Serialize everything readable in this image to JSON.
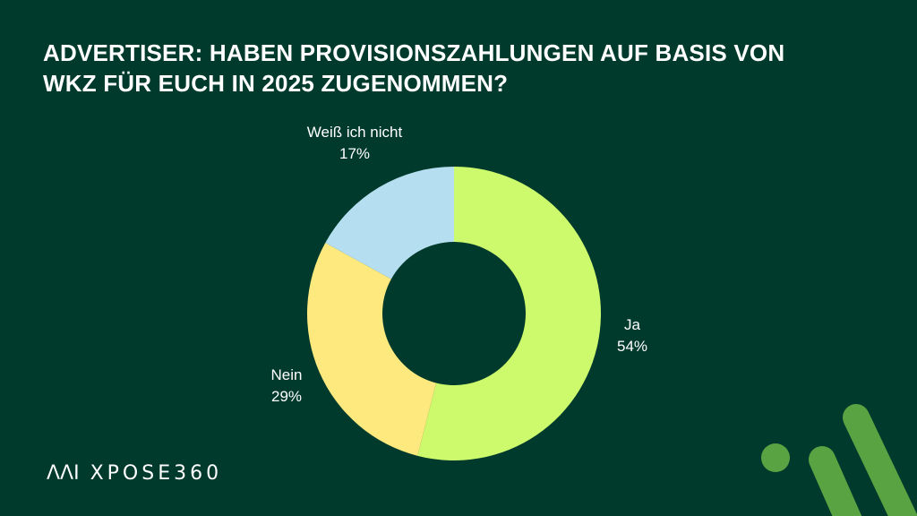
{
  "title": {
    "line1": "ADVERTISER: HABEN PROVISIONSZAHLUNGEN AUF BASIS VON",
    "line2": "WKZ FÜR EUCH IN 2025 ZUGENOMMEN?"
  },
  "chart_data": {
    "type": "pie",
    "variant": "donut",
    "title": "ADVERTISER: HABEN PROVISIONSZAHLUNGEN AUF BASIS VON WKZ FÜR EUCH IN 2025 ZUGENOMMEN?",
    "slices": [
      {
        "label": "Ja",
        "value": 54,
        "value_label": "54%",
        "color": "#cdfa6c"
      },
      {
        "label": "Nein",
        "value": 29,
        "value_label": "29%",
        "color": "#fde97d"
      },
      {
        "label": "Weiß ich nicht",
        "value": 17,
        "value_label": "17%",
        "color": "#b5dff0"
      }
    ]
  },
  "logo": {
    "mark": "ΛΛΙ",
    "text": "XPOSE360"
  },
  "colors": {
    "background": "#003a2c",
    "accent": "#5aa343"
  }
}
